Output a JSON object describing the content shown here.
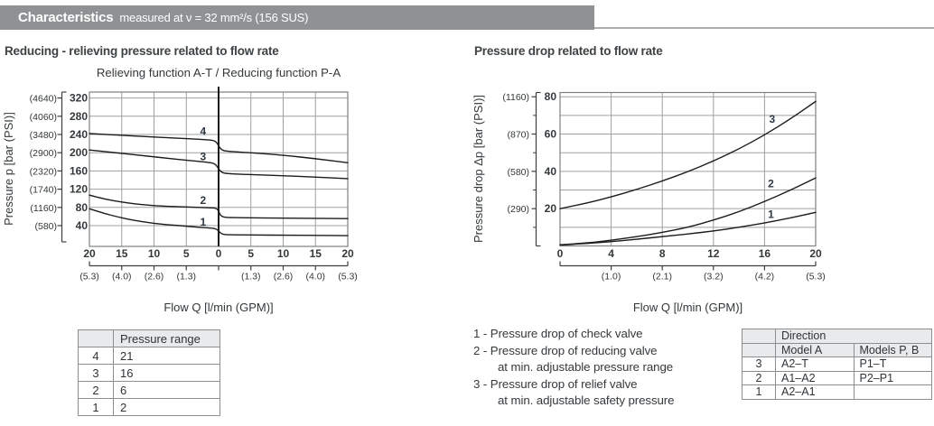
{
  "header": {
    "title": "Characteristics",
    "subtitle": "measured at ν = 32 mm²/s (156 SUS)"
  },
  "sections": {
    "left": "Reducing - relieving pressure related to flow rate",
    "right": "Pressure drop related to flow rate"
  },
  "chart_data": [
    {
      "type": "line",
      "title": "Relieving function A-T / Reducing function P-A",
      "xlabel": "Flow Q [l/min (GPM)]",
      "ylabel": "Pressure p [bar (PSI)]",
      "x_axis": {
        "range": [
          -20,
          20
        ],
        "ticks": [
          {
            "t": -20,
            "label": "20",
            "gpm": "(5.3)"
          },
          {
            "t": -15,
            "label": "15",
            "gpm": "(4.0)"
          },
          {
            "t": -10,
            "label": "10",
            "gpm": "(2.6)"
          },
          {
            "t": -5,
            "label": "5",
            "gpm": "(1.3)"
          },
          {
            "t": 0,
            "label": "0"
          },
          {
            "t": 5,
            "label": "5",
            "gpm": "(1.3)"
          },
          {
            "t": 10,
            "label": "10",
            "gpm": "(2.6)"
          },
          {
            "t": 15,
            "label": "15",
            "gpm": "(4.0)"
          },
          {
            "t": 20,
            "label": "20",
            "gpm": "(5.3)"
          }
        ]
      },
      "y_axis": {
        "range": [
          0,
          330
        ],
        "ticks": [
          {
            "v": 40,
            "bar": "40",
            "psi": "(580)"
          },
          {
            "v": 80,
            "bar": "80",
            "psi": "(1160)"
          },
          {
            "v": 120,
            "bar": "120",
            "psi": "(1740)"
          },
          {
            "v": 160,
            "bar": "160",
            "psi": "(2320)"
          },
          {
            "v": 200,
            "bar": "200",
            "psi": "(2900)"
          },
          {
            "v": 240,
            "bar": "240",
            "psi": "(3480)"
          },
          {
            "v": 280,
            "bar": "280",
            "psi": "(4060)"
          },
          {
            "v": 320,
            "bar": "320",
            "psi": "(4640)"
          }
        ]
      },
      "series": [
        {
          "name": "1",
          "label_at": [
            -2.4,
            48
          ],
          "points": [
            [
              -20,
              77
            ],
            [
              -18,
              68
            ],
            [
              -16,
              60.5
            ],
            [
              -14,
              54
            ],
            [
              -12,
              49
            ],
            [
              -10,
              45
            ],
            [
              -8,
              42
            ],
            [
              -6,
              40
            ],
            [
              -4,
              37.5
            ],
            [
              -2,
              35.5
            ],
            [
              -1,
              34.5
            ],
            [
              -0.5,
              33.5
            ],
            [
              -0.1,
              30
            ],
            [
              0.3,
              23.5
            ],
            [
              0.8,
              20.5
            ],
            [
              1.5,
              20
            ],
            [
              3,
              19.8
            ],
            [
              6,
              19.4
            ],
            [
              10,
              19
            ],
            [
              15,
              18.5
            ],
            [
              20,
              18
            ]
          ]
        },
        {
          "name": "2",
          "label_at": [
            -2.4,
            95
          ],
          "points": [
            [
              -20,
              107
            ],
            [
              -18,
              99.5
            ],
            [
              -16,
              94
            ],
            [
              -14,
              89.5
            ],
            [
              -12,
              86.5
            ],
            [
              -10,
              84
            ],
            [
              -8,
              82.5
            ],
            [
              -6,
              81.5
            ],
            [
              -4,
              80.5
            ],
            [
              -2,
              79.5
            ],
            [
              -1,
              79
            ],
            [
              -0.5,
              78.5
            ],
            [
              -0.1,
              75
            ],
            [
              0.3,
              62
            ],
            [
              0.8,
              58.5
            ],
            [
              1.5,
              57.8
            ],
            [
              3,
              57.4
            ],
            [
              6,
              57
            ],
            [
              10,
              56.5
            ],
            [
              15,
              56
            ],
            [
              20,
              55.5
            ]
          ]
        },
        {
          "name": "3",
          "label_at": [
            -2.4,
            191
          ],
          "points": [
            [
              -20,
              206
            ],
            [
              -16,
              200
            ],
            [
              -12,
              194
            ],
            [
              -8,
              188
            ],
            [
              -5,
              183.5
            ],
            [
              -3,
              181
            ],
            [
              -1.5,
              178.5
            ],
            [
              -0.8,
              177
            ],
            [
              -0.3,
              172
            ],
            [
              0.1,
              162
            ],
            [
              0.6,
              156
            ],
            [
              1.2,
              154.5
            ],
            [
              3,
              153
            ],
            [
              6,
              151.5
            ],
            [
              10,
              149.5
            ],
            [
              15,
              146.5
            ],
            [
              20,
              143
            ]
          ]
        },
        {
          "name": "4",
          "label_at": [
            -2.4,
            247
          ],
          "points": [
            [
              -20,
              242
            ],
            [
              -16,
              239
            ],
            [
              -12,
              236
            ],
            [
              -8,
              233
            ],
            [
              -5,
              231
            ],
            [
              -3,
              229.5
            ],
            [
              -1.5,
              228
            ],
            [
              -0.8,
              227
            ],
            [
              -0.3,
              223
            ],
            [
              0.1,
              212
            ],
            [
              0.6,
              205
            ],
            [
              1.2,
              203.5
            ],
            [
              3,
              201.5
            ],
            [
              6,
              199
            ],
            [
              10,
              194.5
            ],
            [
              15,
              187
            ],
            [
              20,
              178
            ]
          ]
        }
      ]
    },
    {
      "type": "line",
      "title": "",
      "xlabel": "Flow Q [l/min (GPM)]",
      "ylabel": "Pressure drop Δp [bar (PSI)]",
      "x_axis": {
        "range": [
          0,
          20
        ],
        "ticks": [
          {
            "t": 0,
            "label": "0"
          },
          {
            "t": 4,
            "label": "4",
            "gpm": "(1.0)"
          },
          {
            "t": 8,
            "label": "8",
            "gpm": "(2.1)"
          },
          {
            "t": 12,
            "label": "12",
            "gpm": "(3.2)"
          },
          {
            "t": 16,
            "label": "16",
            "gpm": "(4.2)"
          },
          {
            "t": 20,
            "label": "20",
            "gpm": "(5.3)"
          }
        ]
      },
      "y_axis": {
        "range": [
          0,
          82
        ],
        "minor": [
          10,
          30,
          50,
          70
        ],
        "ticks": [
          {
            "v": 20,
            "bar": "20",
            "psi": "(290)"
          },
          {
            "v": 40,
            "bar": "40",
            "psi": "(580)"
          },
          {
            "v": 60,
            "bar": "60",
            "psi": "(870)"
          },
          {
            "v": 80,
            "bar": "80",
            "psi": "(1160)"
          }
        ]
      },
      "series": [
        {
          "name": "1",
          "label_at": [
            16.5,
            17
          ],
          "points": [
            [
              0,
              0.5
            ],
            [
              2,
              1.3
            ],
            [
              4,
              2.3
            ],
            [
              6,
              3.6
            ],
            [
              8,
              5
            ],
            [
              10,
              6.4
            ],
            [
              12,
              8
            ],
            [
              14,
              10
            ],
            [
              16,
              12.3
            ],
            [
              18,
              15
            ],
            [
              20,
              18
            ]
          ]
        },
        {
          "name": "2",
          "label_at": [
            16.5,
            33.5
          ],
          "points": [
            [
              0,
              0.6
            ],
            [
              2,
              1.5
            ],
            [
              4,
              3
            ],
            [
              6,
              5
            ],
            [
              8,
              7.2
            ],
            [
              10,
              10
            ],
            [
              12,
              13.8
            ],
            [
              14,
              18.3
            ],
            [
              16,
              23.8
            ],
            [
              18,
              29.8
            ],
            [
              20,
              36.5
            ]
          ]
        },
        {
          "name": "3",
          "label_at": [
            16.6,
            68
          ],
          "points": [
            [
              0,
              20
            ],
            [
              2,
              22.8
            ],
            [
              4,
              26.3
            ],
            [
              6,
              30.3
            ],
            [
              8,
              34.8
            ],
            [
              10,
              39.8
            ],
            [
              12,
              45.5
            ],
            [
              14,
              52
            ],
            [
              16,
              59.5
            ],
            [
              18,
              68
            ],
            [
              20,
              77.5
            ]
          ]
        }
      ]
    }
  ],
  "left_table": {
    "header": [
      "",
      "Pressure range"
    ],
    "rows": [
      [
        "4",
        "21"
      ],
      [
        "3",
        "16"
      ],
      [
        "2",
        "6"
      ],
      [
        "1",
        "2"
      ]
    ]
  },
  "legend": {
    "items": [
      {
        "lines": [
          "1 - Pressure drop of check valve"
        ]
      },
      {
        "lines": [
          "2 - Pressure drop of reducing valve",
          "at min. adjustable pressure range"
        ]
      },
      {
        "lines": [
          "3 - Pressure drop of relief valve",
          "at min. adjustable safety pressure"
        ]
      }
    ]
  },
  "right_table": {
    "group_header": "Direction",
    "col_headers": [
      "",
      "Model A",
      "Models P, B"
    ],
    "rows": [
      [
        "3",
        "A2–T",
        "P1–T"
      ],
      [
        "2",
        "A1–A2",
        "P2–P1"
      ],
      [
        "1",
        "A2–A1",
        ""
      ]
    ]
  }
}
